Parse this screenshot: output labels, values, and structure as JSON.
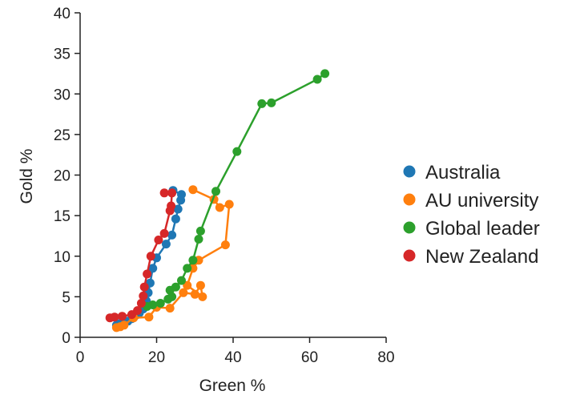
{
  "chart_data": {
    "type": "line",
    "title": "",
    "xlabel": "Green %",
    "ylabel": "Gold %",
    "xlim": [
      0,
      80
    ],
    "ylim": [
      0,
      40
    ],
    "xticks": [
      0,
      20,
      40,
      60,
      80
    ],
    "yticks": [
      0,
      5,
      10,
      15,
      20,
      25,
      30,
      35,
      40
    ],
    "grid": false,
    "legend_position": "right",
    "series": [
      {
        "name": "Australia",
        "color": "#1f77b4",
        "points": [
          [
            9.5,
            1.5
          ],
          [
            10.5,
            1.7
          ],
          [
            11.5,
            1.8
          ],
          [
            12.5,
            2.0
          ],
          [
            13.5,
            2.3
          ],
          [
            14.5,
            2.7
          ],
          [
            15.5,
            3.0
          ],
          [
            16.5,
            3.5
          ],
          [
            17.3,
            4.5
          ],
          [
            17.8,
            5.5
          ],
          [
            18.3,
            6.7
          ],
          [
            19.0,
            8.5
          ],
          [
            20.0,
            9.8
          ],
          [
            22.5,
            11.5
          ],
          [
            24.0,
            12.6
          ],
          [
            25.0,
            14.6
          ],
          [
            25.6,
            15.8
          ],
          [
            26.3,
            16.9
          ],
          [
            26.5,
            17.6
          ],
          [
            24.3,
            18.1
          ]
        ]
      },
      {
        "name": "AU university",
        "color": "#ff7f0e",
        "points": [
          [
            9.5,
            1.2
          ],
          [
            10.5,
            1.3
          ],
          [
            11.5,
            1.5
          ],
          [
            14.0,
            2.4
          ],
          [
            18.0,
            2.5
          ],
          [
            20.0,
            3.7
          ],
          [
            23.5,
            3.6
          ],
          [
            27.0,
            5.5
          ],
          [
            30.0,
            5.3
          ],
          [
            31.5,
            6.4
          ],
          [
            32.0,
            5.0
          ],
          [
            28.0,
            6.4
          ],
          [
            29.5,
            8.5
          ],
          [
            31.0,
            9.5
          ],
          [
            38.0,
            11.4
          ],
          [
            39.0,
            16.4
          ],
          [
            36.5,
            16.0
          ],
          [
            35.0,
            17.0
          ],
          [
            29.5,
            18.2
          ]
        ]
      },
      {
        "name": "Global leader",
        "color": "#2ca02c",
        "points": [
          [
            17.5,
            3.8
          ],
          [
            19.0,
            4.0
          ],
          [
            21.0,
            4.2
          ],
          [
            23.0,
            4.7
          ],
          [
            24.0,
            5.0
          ],
          [
            23.5,
            5.8
          ],
          [
            25.0,
            6.2
          ],
          [
            26.5,
            7.0
          ],
          [
            28.0,
            8.5
          ],
          [
            29.5,
            9.5
          ],
          [
            31.0,
            12.1
          ],
          [
            31.5,
            13.1
          ],
          [
            35.5,
            18.0
          ],
          [
            41.0,
            22.9
          ],
          [
            47.5,
            28.8
          ],
          [
            50.0,
            28.9
          ],
          [
            62.0,
            31.8
          ],
          [
            64.0,
            32.5
          ]
        ]
      },
      {
        "name": "New Zealand",
        "color": "#d62728",
        "points": [
          [
            7.8,
            2.4
          ],
          [
            9.0,
            2.5
          ],
          [
            11.0,
            2.6
          ],
          [
            13.5,
            2.8
          ],
          [
            15.0,
            3.3
          ],
          [
            16.0,
            4.2
          ],
          [
            16.5,
            5.1
          ],
          [
            16.8,
            6.2
          ],
          [
            17.5,
            7.8
          ],
          [
            18.5,
            10.0
          ],
          [
            20.5,
            12.0
          ],
          [
            22.0,
            12.8
          ],
          [
            23.5,
            15.6
          ],
          [
            23.8,
            16.2
          ],
          [
            24.0,
            17.8
          ],
          [
            22.0,
            17.8
          ]
        ]
      }
    ]
  }
}
